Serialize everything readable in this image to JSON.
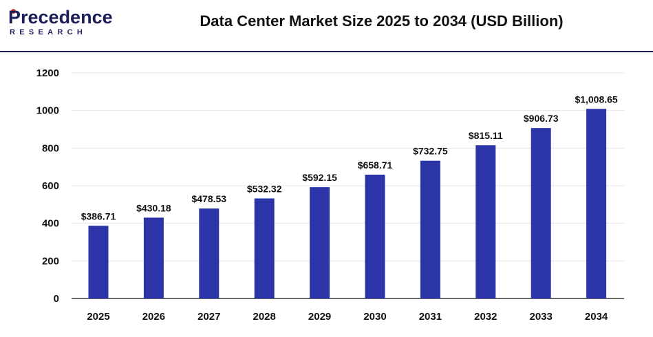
{
  "brand": {
    "name_top": "Precedence",
    "name_bottom": "RESEARCH"
  },
  "colors": {
    "bar": "#2b35a8",
    "grid": "#e6e6e6",
    "axis": "#111111",
    "brand_navy": "#1b1e5a",
    "brand_red": "#e5322d"
  },
  "chart_data": {
    "type": "bar",
    "title": "Data Center Market Size 2025 to 2034 (USD Billion)",
    "xlabel": "",
    "ylabel": "",
    "ylim": [
      0,
      1200
    ],
    "yticks": [
      0,
      200,
      400,
      600,
      800,
      1000,
      1200
    ],
    "grid": true,
    "categories": [
      "2025",
      "2026",
      "2027",
      "2028",
      "2029",
      "2030",
      "2031",
      "2032",
      "2033",
      "2034"
    ],
    "values": [
      386.71,
      430.18,
      478.53,
      532.32,
      592.15,
      658.71,
      732.75,
      815.11,
      906.73,
      1008.65
    ],
    "data_labels": [
      "$386.71",
      "$430.18",
      "$478.53",
      "$532.32",
      "$592.15",
      "$658.71",
      "$732.75",
      "$815.11",
      "$906.73",
      "$1,008.65"
    ]
  }
}
